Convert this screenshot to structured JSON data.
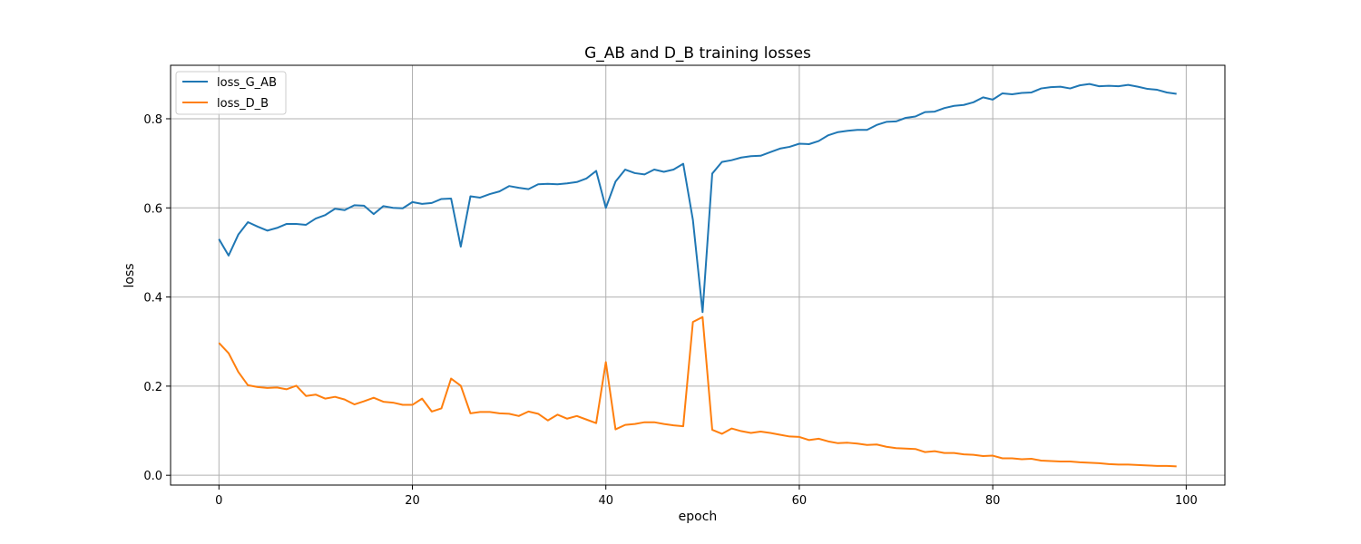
{
  "chart_data": {
    "type": "line",
    "title": "G_AB and D_B training losses",
    "xlabel": "epoch",
    "ylabel": "loss",
    "xlim": [
      -5,
      104
    ],
    "ylim": [
      -0.022,
      0.92
    ],
    "xticks": [
      0,
      20,
      40,
      60,
      80,
      100
    ],
    "yticks": [
      0.0,
      0.2,
      0.4,
      0.6,
      0.8
    ],
    "grid": true,
    "legend_position": "top-left",
    "x": [
      0,
      1,
      2,
      3,
      4,
      5,
      6,
      7,
      8,
      9,
      10,
      11,
      12,
      13,
      14,
      15,
      16,
      17,
      18,
      19,
      20,
      21,
      22,
      23,
      24,
      25,
      26,
      27,
      28,
      29,
      30,
      31,
      32,
      33,
      34,
      35,
      36,
      37,
      38,
      39,
      40,
      41,
      42,
      43,
      44,
      45,
      46,
      47,
      48,
      49,
      50,
      51,
      52,
      53,
      54,
      55,
      56,
      57,
      58,
      59,
      60,
      61,
      62,
      63,
      64,
      65,
      66,
      67,
      68,
      69,
      70,
      71,
      72,
      73,
      74,
      75,
      76,
      77,
      78,
      79,
      80,
      81,
      82,
      83,
      84,
      85,
      86,
      87,
      88,
      89,
      90,
      91,
      92,
      93,
      94,
      95,
      96,
      97,
      98,
      99
    ],
    "series": [
      {
        "name": "loss_G_AB",
        "color": "#1f77b4",
        "values": [
          0.53,
          0.493,
          0.54,
          0.568,
          0.558,
          0.549,
          0.555,
          0.564,
          0.564,
          0.562,
          0.576,
          0.584,
          0.598,
          0.595,
          0.606,
          0.605,
          0.586,
          0.604,
          0.6,
          0.599,
          0.613,
          0.609,
          0.611,
          0.62,
          0.621,
          0.513,
          0.626,
          0.623,
          0.631,
          0.637,
          0.649,
          0.645,
          0.642,
          0.653,
          0.654,
          0.653,
          0.655,
          0.658,
          0.666,
          0.683,
          0.6,
          0.659,
          0.686,
          0.678,
          0.675,
          0.686,
          0.681,
          0.686,
          0.699,
          0.573,
          0.366,
          0.677,
          0.703,
          0.707,
          0.713,
          0.716,
          0.717,
          0.725,
          0.733,
          0.737,
          0.744,
          0.743,
          0.75,
          0.763,
          0.77,
          0.773,
          0.775,
          0.775,
          0.786,
          0.793,
          0.794,
          0.802,
          0.805,
          0.815,
          0.816,
          0.824,
          0.829,
          0.831,
          0.837,
          0.848,
          0.843,
          0.857,
          0.855,
          0.858,
          0.859,
          0.868,
          0.871,
          0.872,
          0.868,
          0.875,
          0.878,
          0.873,
          0.874,
          0.873,
          0.876,
          0.872,
          0.867,
          0.865,
          0.859,
          0.856
        ]
      },
      {
        "name": "loss_D_B",
        "color": "#ff7f0e",
        "values": [
          0.297,
          0.274,
          0.232,
          0.202,
          0.198,
          0.196,
          0.197,
          0.193,
          0.201,
          0.178,
          0.181,
          0.172,
          0.176,
          0.17,
          0.159,
          0.166,
          0.174,
          0.165,
          0.163,
          0.158,
          0.158,
          0.172,
          0.143,
          0.15,
          0.217,
          0.201,
          0.139,
          0.142,
          0.142,
          0.139,
          0.138,
          0.133,
          0.143,
          0.138,
          0.123,
          0.136,
          0.127,
          0.133,
          0.125,
          0.117,
          0.254,
          0.103,
          0.113,
          0.115,
          0.119,
          0.119,
          0.115,
          0.112,
          0.11,
          0.344,
          0.355,
          0.102,
          0.093,
          0.105,
          0.099,
          0.095,
          0.098,
          0.095,
          0.091,
          0.087,
          0.086,
          0.079,
          0.082,
          0.076,
          0.072,
          0.073,
          0.071,
          0.068,
          0.069,
          0.064,
          0.061,
          0.06,
          0.059,
          0.052,
          0.054,
          0.05,
          0.05,
          0.047,
          0.046,
          0.043,
          0.044,
          0.038,
          0.038,
          0.036,
          0.037,
          0.033,
          0.032,
          0.031,
          0.031,
          0.029,
          0.028,
          0.027,
          0.025,
          0.024,
          0.024,
          0.023,
          0.022,
          0.021,
          0.021,
          0.02
        ]
      }
    ]
  }
}
